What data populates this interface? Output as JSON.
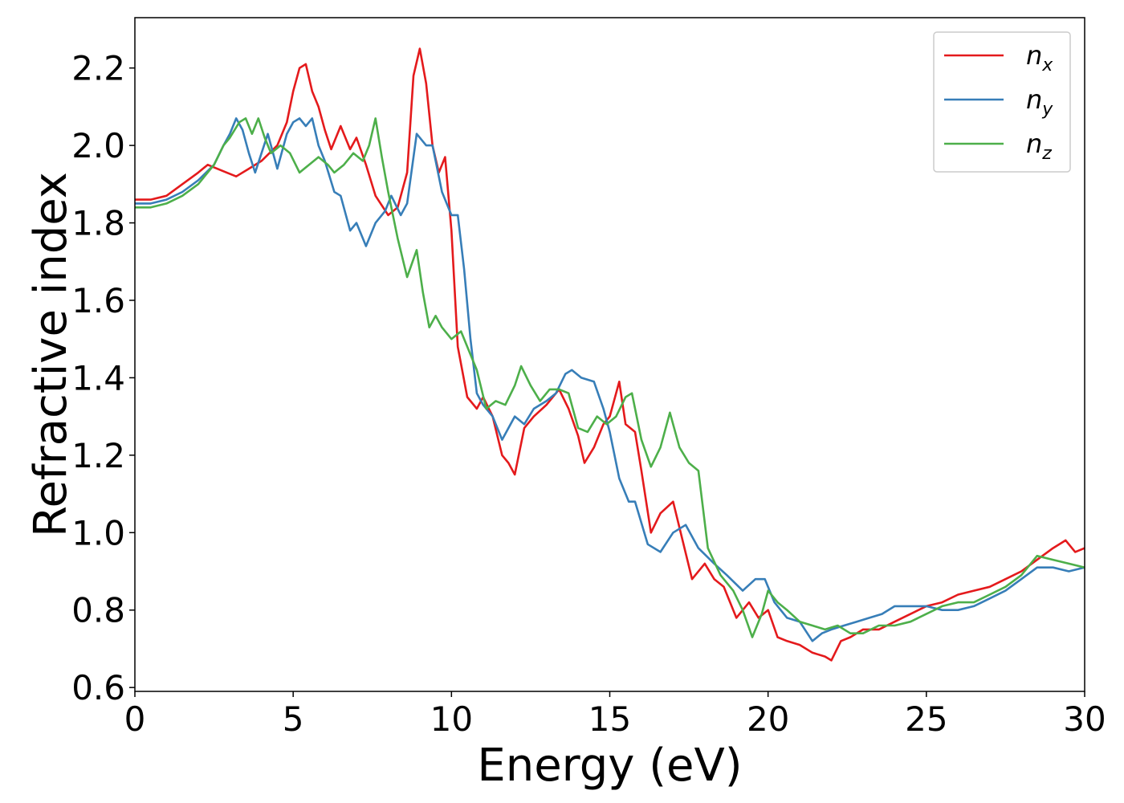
{
  "chart_data": {
    "type": "line",
    "title": "",
    "xlabel": "Energy (eV)",
    "ylabel": "Refractive index",
    "xlim": [
      0,
      30
    ],
    "ylim": [
      0.59,
      2.33
    ],
    "xticks": [
      0,
      5,
      10,
      15,
      20,
      25,
      30
    ],
    "yticks": [
      0.6,
      0.8,
      1.0,
      1.2,
      1.4,
      1.6,
      1.8,
      2.0,
      2.2
    ],
    "xtick_labels": [
      "0",
      "5",
      "10",
      "15",
      "20",
      "25",
      "30"
    ],
    "ytick_labels": [
      "0.6",
      "0.8",
      "1.0",
      "1.2",
      "1.4",
      "1.6",
      "1.8",
      "2.0",
      "2.2"
    ],
    "grid": false,
    "legend_position": "top-right",
    "series": [
      {
        "name": "n_x",
        "legend_main": "n",
        "legend_sub": "x",
        "color": "#e41a1c",
        "points": [
          [
            0,
            1.86
          ],
          [
            0.5,
            1.86
          ],
          [
            1,
            1.87
          ],
          [
            1.5,
            1.9
          ],
          [
            2,
            1.93
          ],
          [
            2.3,
            1.95
          ],
          [
            2.6,
            1.94
          ],
          [
            2.9,
            1.93
          ],
          [
            3.2,
            1.92
          ],
          [
            3.6,
            1.94
          ],
          [
            4,
            1.96
          ],
          [
            4.5,
            2.0
          ],
          [
            4.8,
            2.06
          ],
          [
            5,
            2.14
          ],
          [
            5.2,
            2.2
          ],
          [
            5.4,
            2.21
          ],
          [
            5.6,
            2.14
          ],
          [
            5.8,
            2.1
          ],
          [
            6,
            2.04
          ],
          [
            6.2,
            1.99
          ],
          [
            6.5,
            2.05
          ],
          [
            6.8,
            1.99
          ],
          [
            7,
            2.02
          ],
          [
            7.3,
            1.95
          ],
          [
            7.6,
            1.87
          ],
          [
            8,
            1.82
          ],
          [
            8.3,
            1.84
          ],
          [
            8.6,
            1.93
          ],
          [
            8.8,
            2.18
          ],
          [
            9,
            2.25
          ],
          [
            9.2,
            2.16
          ],
          [
            9.4,
            2.0
          ],
          [
            9.6,
            1.93
          ],
          [
            9.8,
            1.97
          ],
          [
            10,
            1.78
          ],
          [
            10.2,
            1.48
          ],
          [
            10.5,
            1.35
          ],
          [
            10.8,
            1.32
          ],
          [
            11,
            1.35
          ],
          [
            11.3,
            1.3
          ],
          [
            11.6,
            1.2
          ],
          [
            11.8,
            1.18
          ],
          [
            12,
            1.15
          ],
          [
            12.3,
            1.27
          ],
          [
            12.6,
            1.3
          ],
          [
            13,
            1.33
          ],
          [
            13.4,
            1.37
          ],
          [
            13.7,
            1.32
          ],
          [
            14,
            1.25
          ],
          [
            14.2,
            1.18
          ],
          [
            14.5,
            1.22
          ],
          [
            14.8,
            1.28
          ],
          [
            15,
            1.3
          ],
          [
            15.3,
            1.39
          ],
          [
            15.5,
            1.28
          ],
          [
            15.8,
            1.26
          ],
          [
            16,
            1.16
          ],
          [
            16.3,
            1.0
          ],
          [
            16.6,
            1.05
          ],
          [
            17,
            1.08
          ],
          [
            17.3,
            0.98
          ],
          [
            17.6,
            0.88
          ],
          [
            18,
            0.92
          ],
          [
            18.3,
            0.88
          ],
          [
            18.6,
            0.86
          ],
          [
            19,
            0.78
          ],
          [
            19.4,
            0.82
          ],
          [
            19.7,
            0.78
          ],
          [
            20,
            0.8
          ],
          [
            20.3,
            0.73
          ],
          [
            20.6,
            0.72
          ],
          [
            21,
            0.71
          ],
          [
            21.4,
            0.69
          ],
          [
            21.8,
            0.68
          ],
          [
            22,
            0.67
          ],
          [
            22.3,
            0.72
          ],
          [
            22.6,
            0.73
          ],
          [
            23,
            0.75
          ],
          [
            23.5,
            0.75
          ],
          [
            24,
            0.77
          ],
          [
            24.5,
            0.79
          ],
          [
            25,
            0.81
          ],
          [
            25.5,
            0.82
          ],
          [
            26,
            0.84
          ],
          [
            26.5,
            0.85
          ],
          [
            27,
            0.86
          ],
          [
            27.5,
            0.88
          ],
          [
            28,
            0.9
          ],
          [
            28.5,
            0.93
          ],
          [
            29,
            0.96
          ],
          [
            29.4,
            0.98
          ],
          [
            29.7,
            0.95
          ],
          [
            30,
            0.96
          ]
        ]
      },
      {
        "name": "n_y",
        "legend_main": "n",
        "legend_sub": "y",
        "color": "#377eb8",
        "points": [
          [
            0,
            1.85
          ],
          [
            0.5,
            1.85
          ],
          [
            1,
            1.86
          ],
          [
            1.5,
            1.88
          ],
          [
            2,
            1.91
          ],
          [
            2.5,
            1.95
          ],
          [
            2.8,
            2.0
          ],
          [
            3,
            2.03
          ],
          [
            3.2,
            2.07
          ],
          [
            3.4,
            2.04
          ],
          [
            3.6,
            1.98
          ],
          [
            3.8,
            1.93
          ],
          [
            4,
            1.98
          ],
          [
            4.2,
            2.03
          ],
          [
            4.5,
            1.94
          ],
          [
            4.8,
            2.03
          ],
          [
            5,
            2.06
          ],
          [
            5.2,
            2.07
          ],
          [
            5.4,
            2.05
          ],
          [
            5.6,
            2.07
          ],
          [
            5.8,
            2.0
          ],
          [
            6,
            1.96
          ],
          [
            6.3,
            1.88
          ],
          [
            6.5,
            1.87
          ],
          [
            6.8,
            1.78
          ],
          [
            7,
            1.8
          ],
          [
            7.3,
            1.74
          ],
          [
            7.6,
            1.8
          ],
          [
            7.9,
            1.83
          ],
          [
            8.1,
            1.87
          ],
          [
            8.4,
            1.82
          ],
          [
            8.6,
            1.85
          ],
          [
            8.9,
            2.03
          ],
          [
            9.2,
            2.0
          ],
          [
            9.4,
            2.0
          ],
          [
            9.7,
            1.88
          ],
          [
            10,
            1.82
          ],
          [
            10.2,
            1.82
          ],
          [
            10.4,
            1.68
          ],
          [
            10.6,
            1.5
          ],
          [
            10.8,
            1.36
          ],
          [
            11,
            1.33
          ],
          [
            11.3,
            1.3
          ],
          [
            11.6,
            1.24
          ],
          [
            12,
            1.3
          ],
          [
            12.3,
            1.28
          ],
          [
            12.6,
            1.32
          ],
          [
            13,
            1.34
          ],
          [
            13.3,
            1.36
          ],
          [
            13.6,
            1.41
          ],
          [
            13.8,
            1.42
          ],
          [
            14.1,
            1.4
          ],
          [
            14.5,
            1.39
          ],
          [
            14.8,
            1.32
          ],
          [
            15,
            1.26
          ],
          [
            15.3,
            1.14
          ],
          [
            15.6,
            1.08
          ],
          [
            15.8,
            1.08
          ],
          [
            16.2,
            0.97
          ],
          [
            16.6,
            0.95
          ],
          [
            17,
            1.0
          ],
          [
            17.4,
            1.02
          ],
          [
            17.8,
            0.96
          ],
          [
            18.3,
            0.92
          ],
          [
            18.7,
            0.89
          ],
          [
            19.2,
            0.85
          ],
          [
            19.6,
            0.88
          ],
          [
            19.9,
            0.88
          ],
          [
            20.2,
            0.82
          ],
          [
            20.6,
            0.78
          ],
          [
            21,
            0.77
          ],
          [
            21.4,
            0.72
          ],
          [
            21.7,
            0.74
          ],
          [
            22,
            0.75
          ],
          [
            22.4,
            0.76
          ],
          [
            22.8,
            0.77
          ],
          [
            23.2,
            0.78
          ],
          [
            23.6,
            0.79
          ],
          [
            24,
            0.81
          ],
          [
            24.5,
            0.81
          ],
          [
            25,
            0.81
          ],
          [
            25.5,
            0.8
          ],
          [
            26,
            0.8
          ],
          [
            26.5,
            0.81
          ],
          [
            27,
            0.83
          ],
          [
            27.5,
            0.85
          ],
          [
            28,
            0.88
          ],
          [
            28.5,
            0.91
          ],
          [
            29,
            0.91
          ],
          [
            29.5,
            0.9
          ],
          [
            30,
            0.91
          ]
        ]
      },
      {
        "name": "n_z",
        "legend_main": "n",
        "legend_sub": "z",
        "color": "#4daf4a",
        "points": [
          [
            0,
            1.84
          ],
          [
            0.5,
            1.84
          ],
          [
            1,
            1.85
          ],
          [
            1.5,
            1.87
          ],
          [
            2,
            1.9
          ],
          [
            2.5,
            1.95
          ],
          [
            2.8,
            2.0
          ],
          [
            3,
            2.02
          ],
          [
            3.3,
            2.06
          ],
          [
            3.5,
            2.07
          ],
          [
            3.7,
            2.03
          ],
          [
            3.9,
            2.07
          ],
          [
            4.1,
            2.02
          ],
          [
            4.3,
            1.98
          ],
          [
            4.6,
            2.0
          ],
          [
            4.9,
            1.98
          ],
          [
            5.2,
            1.93
          ],
          [
            5.5,
            1.95
          ],
          [
            5.8,
            1.97
          ],
          [
            6.1,
            1.95
          ],
          [
            6.3,
            1.93
          ],
          [
            6.6,
            1.95
          ],
          [
            6.9,
            1.98
          ],
          [
            7.2,
            1.96
          ],
          [
            7.4,
            2.0
          ],
          [
            7.6,
            2.07
          ],
          [
            7.8,
            1.97
          ],
          [
            8,
            1.88
          ],
          [
            8.3,
            1.76
          ],
          [
            8.6,
            1.66
          ],
          [
            8.9,
            1.73
          ],
          [
            9.1,
            1.62
          ],
          [
            9.3,
            1.53
          ],
          [
            9.5,
            1.56
          ],
          [
            9.7,
            1.53
          ],
          [
            10,
            1.5
          ],
          [
            10.3,
            1.52
          ],
          [
            10.6,
            1.46
          ],
          [
            10.8,
            1.42
          ],
          [
            11.1,
            1.32
          ],
          [
            11.4,
            1.34
          ],
          [
            11.7,
            1.33
          ],
          [
            12,
            1.38
          ],
          [
            12.2,
            1.43
          ],
          [
            12.5,
            1.38
          ],
          [
            12.8,
            1.34
          ],
          [
            13.1,
            1.37
          ],
          [
            13.4,
            1.37
          ],
          [
            13.7,
            1.36
          ],
          [
            14,
            1.27
          ],
          [
            14.3,
            1.26
          ],
          [
            14.6,
            1.3
          ],
          [
            14.9,
            1.28
          ],
          [
            15.2,
            1.3
          ],
          [
            15.5,
            1.35
          ],
          [
            15.7,
            1.36
          ],
          [
            16,
            1.24
          ],
          [
            16.3,
            1.17
          ],
          [
            16.6,
            1.22
          ],
          [
            16.9,
            1.31
          ],
          [
            17.2,
            1.22
          ],
          [
            17.5,
            1.18
          ],
          [
            17.8,
            1.16
          ],
          [
            18.1,
            0.96
          ],
          [
            18.5,
            0.89
          ],
          [
            18.9,
            0.85
          ],
          [
            19.2,
            0.8
          ],
          [
            19.5,
            0.73
          ],
          [
            19.8,
            0.79
          ],
          [
            20,
            0.85
          ],
          [
            20.3,
            0.82
          ],
          [
            20.6,
            0.8
          ],
          [
            21,
            0.77
          ],
          [
            21.4,
            0.76
          ],
          [
            21.8,
            0.75
          ],
          [
            22.2,
            0.76
          ],
          [
            22.6,
            0.74
          ],
          [
            23,
            0.74
          ],
          [
            23.5,
            0.76
          ],
          [
            24,
            0.76
          ],
          [
            24.5,
            0.77
          ],
          [
            25,
            0.79
          ],
          [
            25.5,
            0.81
          ],
          [
            26,
            0.82
          ],
          [
            26.5,
            0.82
          ],
          [
            27,
            0.84
          ],
          [
            27.5,
            0.86
          ],
          [
            28,
            0.89
          ],
          [
            28.5,
            0.94
          ],
          [
            29,
            0.93
          ],
          [
            29.5,
            0.92
          ],
          [
            30,
            0.91
          ]
        ]
      }
    ]
  }
}
